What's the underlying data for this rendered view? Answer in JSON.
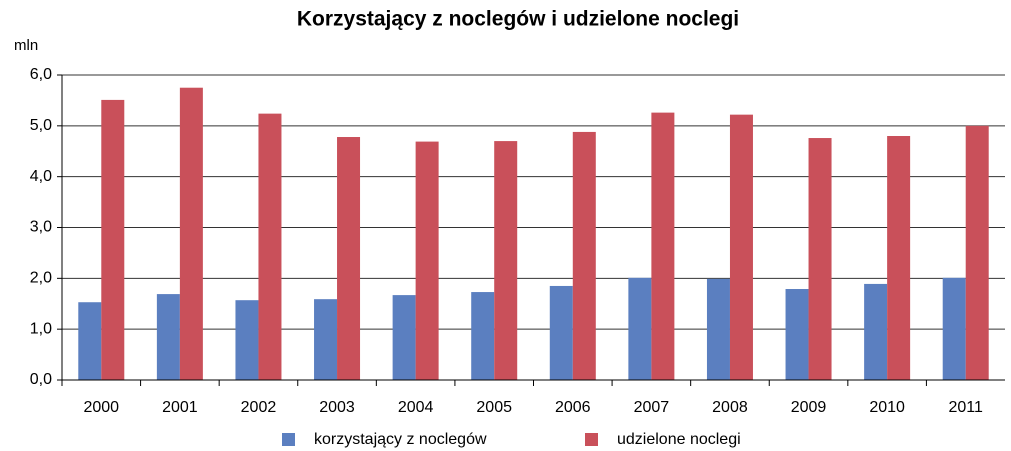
{
  "chart_data": {
    "type": "bar",
    "title": "Korzystający z noclegów  i udzielone noclegi",
    "y_unit": "mln",
    "categories": [
      "2000",
      "2001",
      "2002",
      "2003",
      "2004",
      "2005",
      "2006",
      "2007",
      "2008",
      "2009",
      "2010",
      "2011"
    ],
    "series": [
      {
        "name": "korzystający z noclegów",
        "color": "#5b7fc0",
        "values": [
          1.53,
          1.69,
          1.57,
          1.59,
          1.67,
          1.73,
          1.85,
          2.01,
          1.99,
          1.79,
          1.89,
          2.01
        ]
      },
      {
        "name": "udzielone noclegi",
        "color": "#c9505a",
        "values": [
          5.51,
          5.75,
          5.24,
          4.78,
          4.69,
          4.7,
          4.88,
          5.26,
          5.22,
          4.76,
          4.8,
          5.0
        ]
      }
    ],
    "ylim": [
      0,
      6
    ],
    "yticks": [
      {
        "value": 0,
        "label": "0,0"
      },
      {
        "value": 1,
        "label": "1,0"
      },
      {
        "value": 2,
        "label": "2,0"
      },
      {
        "value": 3,
        "label": "3,0"
      },
      {
        "value": 4,
        "label": "4,0"
      },
      {
        "value": 5,
        "label": "5,0"
      },
      {
        "value": 6,
        "label": "6,0"
      }
    ],
    "grid": true,
    "legend": "bottom"
  }
}
